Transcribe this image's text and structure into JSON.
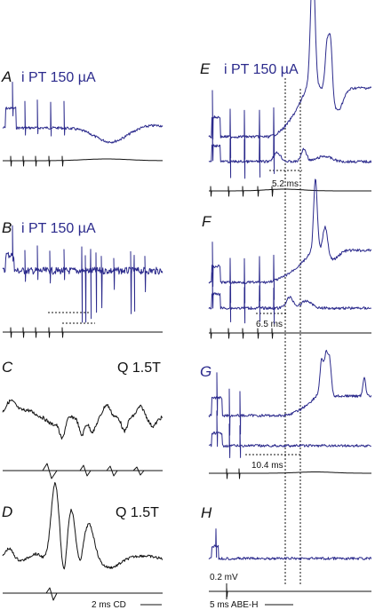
{
  "colors": {
    "trace_blue": "#2b2a8c",
    "trace_black": "#111111",
    "label_black": "#111111"
  },
  "panels": {
    "A": {
      "letter": "A",
      "stim": "i PT 150 µA"
    },
    "B": {
      "letter": "B",
      "stim": "i PT 150 µA"
    },
    "C": {
      "letter": "C",
      "stim": "Q 1.5T"
    },
    "D": {
      "letter": "D",
      "stim": "Q 1.5T"
    },
    "E": {
      "letter": "E",
      "stim": "i PT 150 µA",
      "latency": "5.2 ms"
    },
    "F": {
      "letter": "F",
      "latency": "6.5 ms"
    },
    "G": {
      "letter": "G",
      "latency": "10.4 ms"
    },
    "H": {
      "letter": "H"
    }
  },
  "scale_bars": {
    "time_left": "2 ms CD",
    "time_right": "5 ms ABE-H",
    "voltage": "0.2 mV"
  }
}
